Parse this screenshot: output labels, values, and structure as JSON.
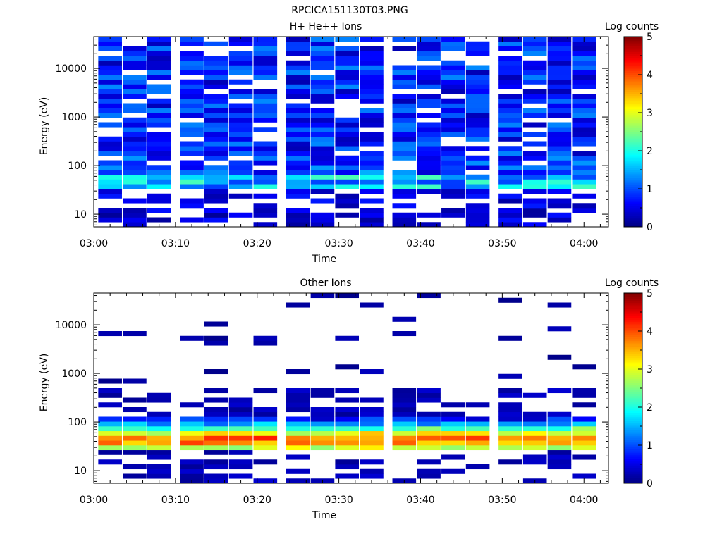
{
  "figure_title": "RPCICA151130T03.PNG",
  "chart_data": [
    {
      "type": "heatmap",
      "title": "H+ He++ Ions",
      "xlabel": "Time",
      "ylabel": "Energy (eV)",
      "y_scale": "log",
      "ylim": [
        5.5,
        45000
      ],
      "x_ticks": [
        "03:00",
        "03:10",
        "03:20",
        "03:30",
        "03:40",
        "03:50",
        "04:00"
      ],
      "y_ticks": [
        "10",
        "100",
        "1000",
        "10000"
      ],
      "time_bins": [
        "03:02",
        "03:05",
        "03:08",
        "03:12",
        "03:15",
        "03:18",
        "03:21",
        "03:25",
        "03:28",
        "03:31",
        "03:34",
        "03:38",
        "03:41",
        "03:44",
        "03:47",
        "03:51",
        "03:54",
        "03:57",
        "04:00"
      ],
      "colorbar": {
        "label": "Log counts",
        "min": 0,
        "max": 5,
        "ticks": [
          "0",
          "1",
          "2",
          "3",
          "4",
          "5"
        ]
      },
      "profile": "hplus",
      "seed": 7
    },
    {
      "type": "heatmap",
      "title": "Other Ions",
      "xlabel": "Time",
      "ylabel": "Energy (eV)",
      "y_scale": "log",
      "ylim": [
        5.5,
        45000
      ],
      "x_ticks": [
        "03:00",
        "03:10",
        "03:20",
        "03:30",
        "03:40",
        "03:50",
        "04:00"
      ],
      "y_ticks": [
        "10",
        "100",
        "1000",
        "10000"
      ],
      "time_bins": [
        "03:02",
        "03:05",
        "03:08",
        "03:12",
        "03:15",
        "03:18",
        "03:21",
        "03:25",
        "03:28",
        "03:31",
        "03:34",
        "03:38",
        "03:41",
        "03:44",
        "03:47",
        "03:51",
        "03:54",
        "03:57",
        "04:00"
      ],
      "colorbar": {
        "label": "Log counts",
        "min": 0,
        "max": 5,
        "ticks": [
          "0",
          "1",
          "2",
          "3",
          "4",
          "5"
        ]
      },
      "profile": "other",
      "seed": 11
    }
  ]
}
